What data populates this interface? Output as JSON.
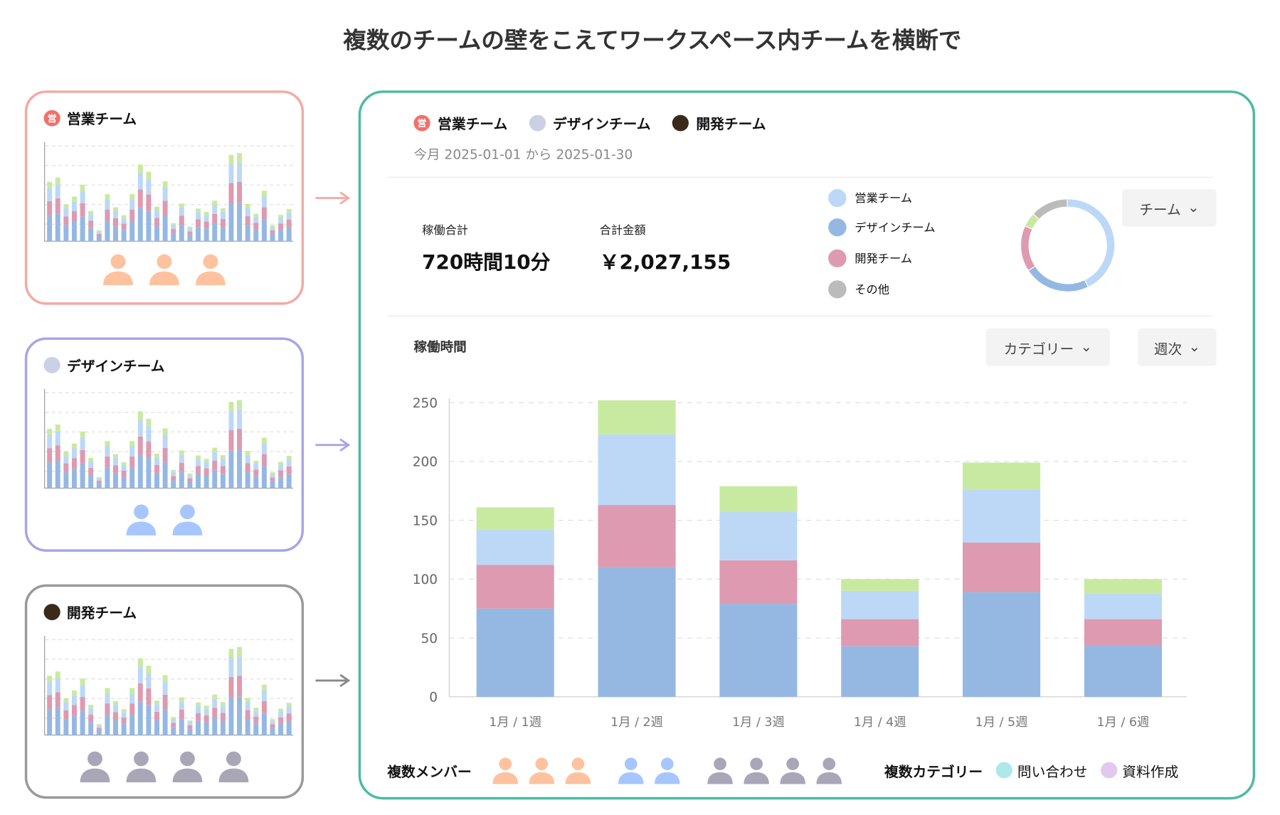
{
  "title": "複数のチームの壁をこえてワークスペース内チームを横断で",
  "colors": {
    "sales": "#f4aaa4",
    "design": "#a9a3e8",
    "dev": "#999999",
    "main": "#4bbba0",
    "bar_design": "#95b8e3",
    "bar_dev": "#dd9ab0",
    "bar_sales": "#bcd8f6",
    "bar_green": "#c8eaa0",
    "other": "#bbbbbb"
  },
  "cards": [
    {
      "name": "営業チーム",
      "icon": "営",
      "members": 3,
      "member_color": "#ffc29e"
    },
    {
      "name": "デザインチーム",
      "members": 2,
      "member_color": "#a7c6ff"
    },
    {
      "name": "開発チーム",
      "members": 4,
      "member_color": "#a9a6b8"
    }
  ],
  "main": {
    "teams": [
      "営業チーム",
      "デザインチーム",
      "開発チーム"
    ],
    "team_icon": "営",
    "date_range": "今月 2025-01-01 から 2025-01-30",
    "kpi": [
      {
        "label": "稼働合計",
        "value": "720時間10分"
      },
      {
        "label": "合計金額",
        "value": "￥2,027,155"
      }
    ],
    "legend": [
      {
        "label": "営業チーム",
        "color": "#bcd8f6"
      },
      {
        "label": "デザインチーム",
        "color": "#95b8e3"
      },
      {
        "label": "開発チーム",
        "color": "#dd9ab0"
      },
      {
        "label": "その他",
        "color": "#bbbbbb"
      }
    ],
    "donut": [
      {
        "value": 0.43,
        "color": "#bcd8f6"
      },
      {
        "value": 0.23,
        "color": "#95b8e3"
      },
      {
        "value": 0.16,
        "color": "#dd9ab0"
      },
      {
        "value": 0.05,
        "color": "#c8eaa0"
      },
      {
        "value": 0.13,
        "color": "#bbbbbb"
      }
    ],
    "team_dropdown": "チーム",
    "section_title": "稼働時間",
    "category_dropdown": "カテゴリー",
    "period_dropdown": "週次",
    "members_label": "複数メンバー",
    "categories_label": "複数カテゴリー",
    "category_tags": [
      {
        "label": "問い合わせ",
        "color": "#aee8e8"
      },
      {
        "label": "資料作成",
        "color": "#e2c8ee"
      }
    ]
  },
  "chart_data": {
    "type": "bar",
    "stacked": true,
    "categories": [
      "1月 / 1週",
      "1月 / 2週",
      "1月 / 3週",
      "1月 / 4週",
      "1月 / 5週",
      "1月 / 6週"
    ],
    "series": [
      {
        "name": "デザインチーム",
        "color": "#95b8e3",
        "values": [
          75,
          110,
          79,
          43,
          89,
          44
        ]
      },
      {
        "name": "開発チーム",
        "color": "#dd9ab0",
        "values": [
          37,
          53,
          37,
          23,
          42,
          22
        ]
      },
      {
        "name": "営業チーム",
        "color": "#bcd8f6",
        "values": [
          30,
          60,
          41,
          24,
          45,
          22
        ]
      },
      {
        "color": "#c8eaa0",
        "values": [
          19,
          29,
          22,
          10,
          23,
          12
        ]
      }
    ],
    "ylim": [
      0,
      250
    ],
    "yticks": [
      0,
      50,
      100,
      150,
      200,
      250
    ],
    "grid": true
  }
}
